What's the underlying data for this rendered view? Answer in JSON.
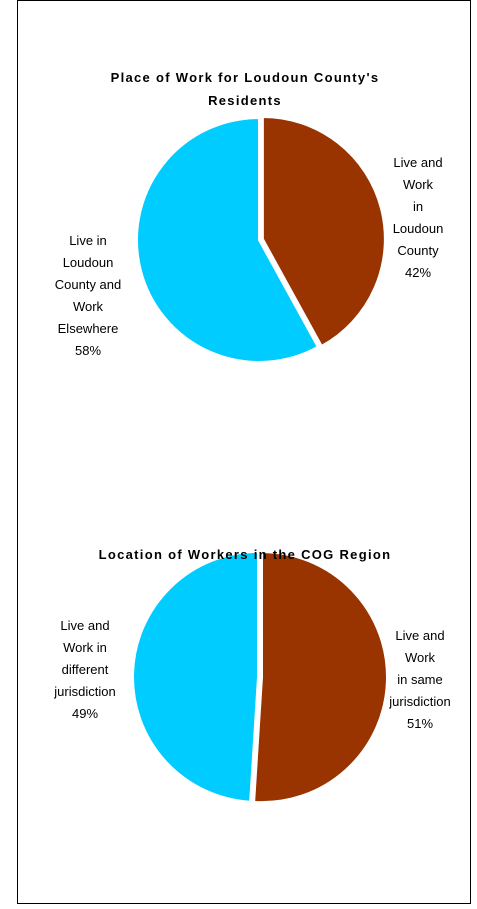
{
  "chart_data": [
    {
      "type": "pie",
      "title": "Place of Work for Loudoun County's Residents",
      "categories": [
        "Live and Work\nin Loudoun\nCounty",
        "Live in\nLoudoun\nCounty and\nWork\nElsewhere"
      ],
      "values": [
        42,
        58
      ],
      "value_labels": [
        "42%",
        "58%"
      ],
      "colors": [
        "#993300",
        "#00ccff"
      ]
    },
    {
      "type": "pie",
      "title": "Location of Workers in the COG Region",
      "categories": [
        "Live and\nWork\nin same\njurisdiction",
        "Live and\nWork in\ndifferent\njurisdiction"
      ],
      "values": [
        51,
        49
      ],
      "value_labels": [
        "51%",
        "49%"
      ],
      "colors": [
        "#993300",
        "#00ccff"
      ]
    }
  ]
}
